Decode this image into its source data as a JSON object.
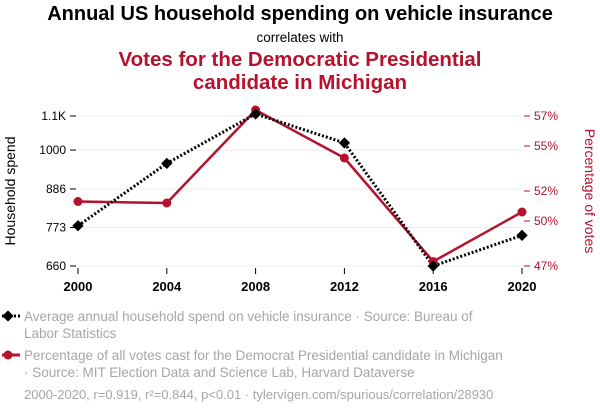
{
  "chart_data": {
    "type": "line",
    "title": "Annual US household spending on vehicle insurance",
    "subtitle": "correlates with",
    "title_second": [
      "Votes for the Democratic Presidential",
      "candidate in Michigan"
    ],
    "x": [
      2000,
      2004,
      2008,
      2012,
      2016,
      2020
    ],
    "x_tick_labels": [
      "2000",
      "2004",
      "2008",
      "2012",
      "2016",
      "2020"
    ],
    "ylabel_left": "Household spend",
    "ylabel_right": "Percentage of votes",
    "y_left_ticks": [
      660,
      773,
      886,
      1000,
      1100
    ],
    "y_left_tick_labels": [
      "660",
      "773",
      "886",
      "1000",
      "1.1K"
    ],
    "y_left_range": [
      660,
      1100
    ],
    "y_right_ticks": [
      47,
      50,
      52,
      55,
      57
    ],
    "y_right_tick_labels": [
      "47%",
      "50%",
      "52%",
      "55%",
      "57%"
    ],
    "y_right_range": [
      47,
      57
    ],
    "grid": "horizontal",
    "series": [
      {
        "name": "Average annual household spend on vehicle insurance · Source: Bureau of Labor Statistics",
        "legend_lines": [
          "Average annual household spend on vehicle insurance · Source: Bureau of",
          "Labor Statistics"
        ],
        "axis": "left",
        "color": "#000000",
        "style": "dotted",
        "marker": "diamond",
        "values": [
          778,
          961,
          1106,
          1021,
          660,
          750
        ]
      },
      {
        "name": "Percentage of all votes cast for the Democrat Presidential candidate in Michigan · Source: MIT Election Data and Science Lab, Harvard Dataverse",
        "legend_lines": [
          "Percentage of all votes cast for the Democrat Presidential candidate in Michigan",
          "· Source: MIT Election Data and Science Lab, Harvard Dataverse"
        ],
        "axis": "right",
        "color": "#b5122e",
        "style": "solid",
        "marker": "circle",
        "values": [
          51.3,
          51.2,
          57.4,
          54.2,
          47.3,
          50.6
        ]
      }
    ],
    "footer": "2000-2020, r=0.919, r²=0.844, p<0.01 · tylervigen.com/spurious/correlation/28930"
  }
}
